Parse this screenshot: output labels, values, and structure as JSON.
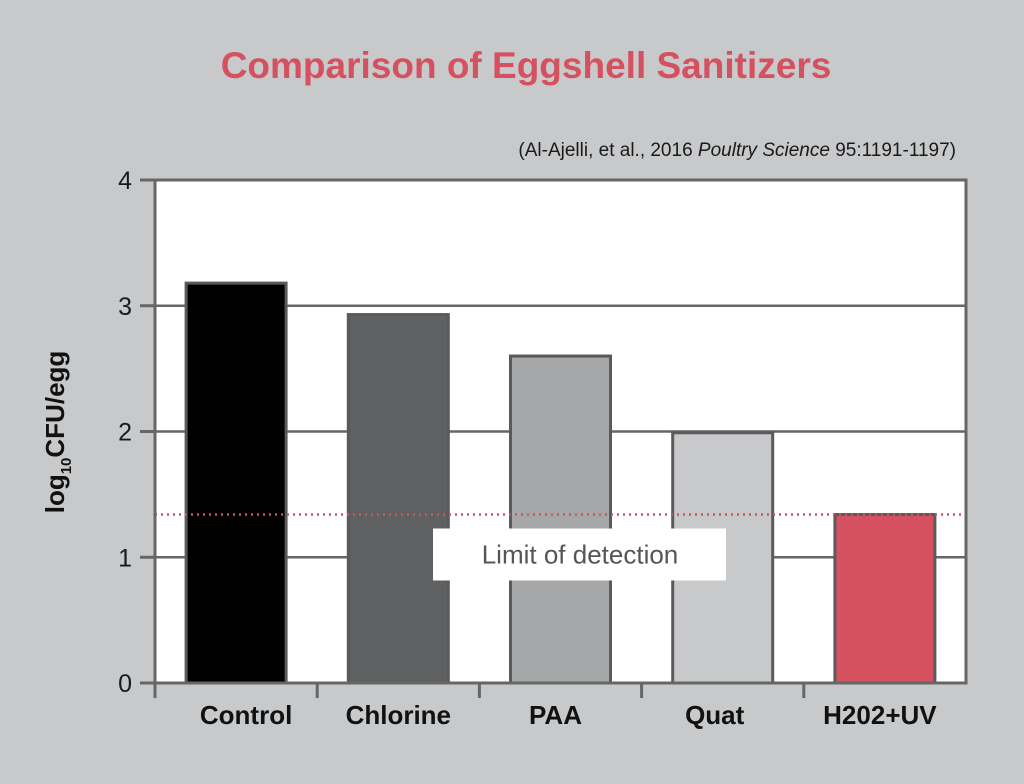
{
  "chart_data": {
    "type": "bar",
    "title": "Comparison of Eggshell Sanitizers",
    "subtitle": {
      "prefix": "(Al-Ajelli, et al., 2016 ",
      "journal": "Poultry Science",
      "suffix": " 95:1191-1197)"
    },
    "xlabel": "",
    "ylabel": {
      "base": "log",
      "subscript": "10",
      "unit": "CFU/egg"
    },
    "ylim": [
      0,
      4
    ],
    "yticks": [
      "0",
      "1",
      "2",
      "3",
      "4"
    ],
    "grid": true,
    "categories": [
      "Control",
      "Chlorine",
      "PAA",
      "Quat",
      "H202+UV"
    ],
    "values": [
      3.18,
      2.93,
      2.6,
      1.99,
      1.34
    ],
    "bar_colors": [
      "#000000",
      "#5f6062",
      "#a6a7a9",
      "#c8c9cb",
      "#d65160"
    ],
    "reference_line": {
      "value": 1.34,
      "label": "Limit of detection",
      "color": "#d65160",
      "style": "dotted"
    },
    "colors": {
      "title": "#d65160",
      "axis": "#666666",
      "bar_outline": "#5a5a5a"
    }
  }
}
